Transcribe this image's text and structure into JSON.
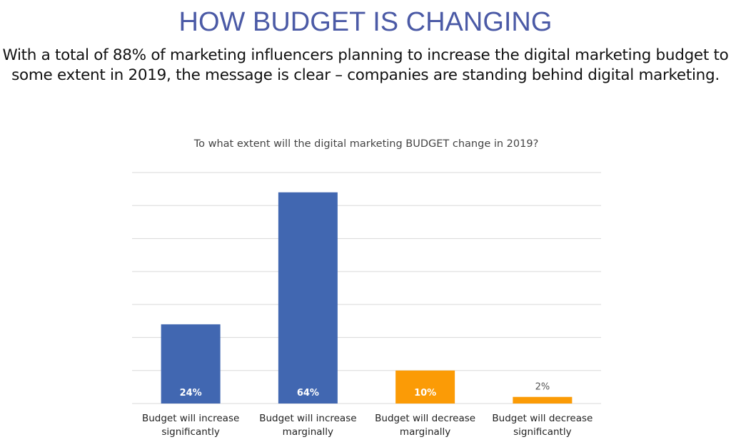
{
  "slide": {
    "title": "HOW BUDGET IS CHANGING",
    "subtitle_line1": "With a total of 88% of marketing influencers planning to increase the digital marketing budget to",
    "subtitle_line2": "some extent in 2019, the message is clear – companies are standing behind digital marketing."
  },
  "chart_data": {
    "type": "bar",
    "title": "To what extent will the digital marketing BUDGET change in 2019?",
    "categories": [
      [
        "Budget will increase",
        "significantly"
      ],
      [
        "Budget will increase",
        "marginally"
      ],
      [
        "Budget will decrease",
        "marginally"
      ],
      [
        "Budget will decrease",
        "significantly"
      ]
    ],
    "values": [
      24,
      64,
      10,
      2
    ],
    "data_labels": [
      "24%",
      "64%",
      "10%",
      "2%"
    ],
    "colors": [
      "#4167b1",
      "#4167b1",
      "#fb9b06",
      "#fb9b06"
    ],
    "ylim": [
      0,
      70
    ],
    "grid": true,
    "xlabel": "",
    "ylabel": ""
  }
}
